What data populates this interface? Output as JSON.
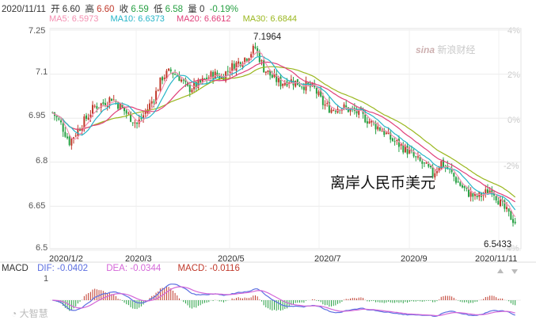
{
  "info_bar": {
    "date": "2020/11/11",
    "open_label": "开",
    "open_value": "6.60",
    "high_label": "高",
    "high_value": "6.60",
    "close_label": "收",
    "close_value": "6.59",
    "low_label": "低",
    "low_value": "6.58",
    "volume_label": "量",
    "volume_value": "0",
    "change": "-0.19%"
  },
  "ma_legend": {
    "ma5": "MA5: 6.5973",
    "ma10": "MA10: 6.6373",
    "ma20": "MA20: 6.6612",
    "ma30": "MA30: 6.6844"
  },
  "colors": {
    "ma5": "#f48fb1",
    "ma10": "#26b5c8",
    "ma20": "#e0407a",
    "ma30": "#9ab71e",
    "up": "#c0392b",
    "down": "#27a043",
    "grid": "#e6e6e6",
    "dif": "#5b6ee1",
    "dea": "#d466d8"
  },
  "watermark": {
    "logo": "sina",
    "text": "新浪财经"
  },
  "chart_title": "离岸人民币美元",
  "annotations": {
    "max": "7.1964",
    "min": "6.5433"
  },
  "y_ticks_left": [
    "7.25",
    "7.1",
    "6.95",
    "6.8",
    "6.65",
    "6.5"
  ],
  "y_ticks_right": [
    "4%",
    "2%",
    "0%",
    "-2%",
    "-4%"
  ],
  "x_ticks": [
    "2020/1/2",
    "2020/3",
    "2020/5",
    "2020/7",
    "2020/9",
    "2020/11/11"
  ],
  "macd_legend": {
    "title": "MACD",
    "dif": "DIF: -0.0402",
    "dea": "DEA: -0.0344",
    "macd": "MACD: -0.0116"
  },
  "macd_axis_top": "1",
  "bottom_logo": "大智慧",
  "chart_data": {
    "type": "candlestick",
    "title": "离岸人民币美元",
    "ylim": [
      6.5,
      7.25
    ],
    "x_ticks": [
      "2020/1/2",
      "2020/3",
      "2020/5",
      "2020/7",
      "2020/9",
      "2020/11/11"
    ],
    "last": {
      "date": "2020/11/11",
      "open": 6.6,
      "high": 6.6,
      "low": 6.58,
      "close": 6.59,
      "change_pct": -0.19
    },
    "max_label": 7.1964,
    "min_label": 6.5433,
    "close_path": [
      [
        0,
        6.97
      ],
      [
        4,
        6.93
      ],
      [
        8,
        6.87
      ],
      [
        12,
        6.91
      ],
      [
        16,
        6.95
      ],
      [
        20,
        6.99
      ],
      [
        24,
        7.0
      ],
      [
        28,
        7.02
      ],
      [
        32,
        6.99
      ],
      [
        36,
        6.96
      ],
      [
        40,
        6.93
      ],
      [
        44,
        6.97
      ],
      [
        48,
        7.02
      ],
      [
        52,
        7.09
      ],
      [
        56,
        7.11
      ],
      [
        60,
        7.09
      ],
      [
        64,
        7.05
      ],
      [
        68,
        7.06
      ],
      [
        72,
        7.08
      ],
      [
        76,
        7.1
      ],
      [
        80,
        7.09
      ],
      [
        84,
        7.12
      ],
      [
        88,
        7.14
      ],
      [
        92,
        7.16
      ],
      [
        96,
        7.19
      ],
      [
        100,
        7.12
      ],
      [
        104,
        7.09
      ],
      [
        108,
        7.07
      ],
      [
        112,
        7.08
      ],
      [
        116,
        7.07
      ],
      [
        120,
        7.06
      ],
      [
        124,
        7.05
      ],
      [
        128,
        7.0
      ],
      [
        132,
        6.98
      ],
      [
        136,
        6.99
      ],
      [
        140,
        6.98
      ],
      [
        144,
        6.97
      ],
      [
        148,
        6.95
      ],
      [
        152,
        6.93
      ],
      [
        156,
        6.91
      ],
      [
        160,
        6.88
      ],
      [
        164,
        6.86
      ],
      [
        168,
        6.84
      ],
      [
        172,
        6.81
      ],
      [
        176,
        6.79
      ],
      [
        180,
        6.76
      ],
      [
        184,
        6.8
      ],
      [
        188,
        6.77
      ],
      [
        192,
        6.73
      ],
      [
        196,
        6.7
      ],
      [
        200,
        6.68
      ],
      [
        204,
        6.69
      ],
      [
        208,
        6.71
      ],
      [
        212,
        6.66
      ],
      [
        216,
        6.62
      ],
      [
        220,
        6.59
      ]
    ],
    "series": [
      {
        "name": "MA5",
        "value": 6.5973
      },
      {
        "name": "MA10",
        "value": 6.6373
      },
      {
        "name": "MA20",
        "value": 6.6612
      },
      {
        "name": "MA30",
        "value": 6.6844
      }
    ],
    "macd": {
      "dif": -0.0402,
      "dea": -0.0344,
      "macd": -0.0116
    }
  }
}
